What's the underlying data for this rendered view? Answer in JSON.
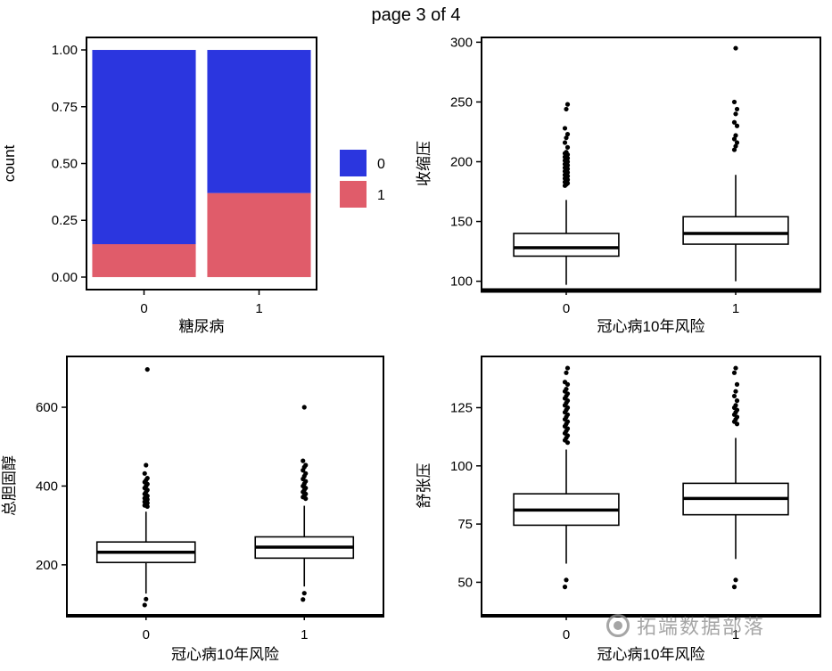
{
  "page": {
    "title": "page 3 of 4"
  },
  "watermark": {
    "text": "拓端数据部落",
    "icon": "tecdat-logo"
  },
  "colors": {
    "blue": "#2b36df",
    "red": "#e05c6a",
    "foreground": "#000000",
    "background": "#ffffff"
  },
  "chart_data": [
    {
      "id": "count-by-diabetes",
      "type": "bar",
      "stacked": true,
      "title": "",
      "xlabel": "糖尿病",
      "ylabel": "count",
      "categories": [
        "0",
        "1"
      ],
      "series": [
        {
          "name": "1",
          "color": "#e05c6a",
          "values": [
            0.145,
            0.37
          ]
        },
        {
          "name": "0",
          "color": "#2b36df",
          "values": [
            0.855,
            0.63
          ]
        }
      ],
      "legend": {
        "position": "right",
        "entries": [
          {
            "label": "0",
            "color": "#2b36df"
          },
          {
            "label": "1",
            "color": "#e05c6a"
          }
        ]
      },
      "ylim": [
        -0.055,
        1.055
      ],
      "yticks": [
        {
          "v": 0,
          "label": "0.00"
        },
        {
          "v": 0.25,
          "label": "0.25"
        },
        {
          "v": 0.5,
          "label": "0.50"
        },
        {
          "v": 0.75,
          "label": "0.75"
        },
        {
          "v": 1,
          "label": "1.00"
        }
      ],
      "grid": false
    },
    {
      "id": "systolic-bp-by-chd-risk",
      "type": "boxplot",
      "title": "",
      "xlabel": "冠心病10年风险",
      "ylabel": "收缩压",
      "categories": [
        "0",
        "1"
      ],
      "ylim": [
        93,
        304
      ],
      "yticks": [
        {
          "v": 100,
          "label": "100"
        },
        {
          "v": 150,
          "label": "150"
        },
        {
          "v": 200,
          "label": "200"
        },
        {
          "v": 250,
          "label": "250"
        },
        {
          "v": 300,
          "label": "300"
        }
      ],
      "boxes": [
        {
          "category": "0",
          "whisker_low": 97,
          "q1": 121,
          "median": 128,
          "q3": 140,
          "whisker_high": 168,
          "outliers": [
            180,
            181,
            182,
            183,
            184,
            185,
            186,
            187,
            188,
            189,
            190,
            191,
            192,
            193,
            194,
            195,
            196,
            197,
            198,
            199,
            200,
            201,
            202,
            203,
            204,
            205,
            206,
            207,
            208,
            212,
            216,
            220,
            223,
            228,
            244,
            248
          ]
        },
        {
          "category": "1",
          "whisker_low": 100,
          "q1": 131,
          "median": 140,
          "q3": 154,
          "whisker_high": 189,
          "outliers": [
            210,
            213,
            216,
            219,
            222,
            230,
            233,
            240,
            244,
            250,
            295
          ]
        }
      ],
      "grid": false
    },
    {
      "id": "total-cholesterol-by-chd-risk",
      "type": "boxplot",
      "title": "",
      "xlabel": "冠心病10年风险",
      "ylabel": "总胆固醇",
      "categories": [
        "0",
        "1"
      ],
      "ylim": [
        73,
        729
      ],
      "yticks": [
        {
          "v": 200,
          "label": "200"
        },
        {
          "v": 400,
          "label": "400"
        },
        {
          "v": 600,
          "label": "600"
        }
      ],
      "boxes": [
        {
          "category": "0",
          "whisker_low": 127,
          "q1": 206,
          "median": 232,
          "q3": 258,
          "whisker_high": 335,
          "outliers": [
            98,
            113,
            348,
            351,
            354,
            357,
            360,
            363,
            366,
            369,
            372,
            375,
            380,
            385,
            390,
            395,
            400,
            405,
            410,
            415,
            420,
            432,
            453,
            696
          ]
        },
        {
          "category": "1",
          "whisker_low": 145,
          "q1": 217,
          "median": 245,
          "q3": 271,
          "whisker_high": 350,
          "outliers": [
            112,
            128,
            368,
            372,
            376,
            380,
            385,
            390,
            395,
            400,
            406,
            412,
            418,
            425,
            432,
            440,
            448,
            453,
            464,
            600
          ]
        }
      ],
      "grid": false
    },
    {
      "id": "diastolic-bp-by-chd-risk",
      "type": "boxplot",
      "title": "",
      "xlabel": "冠心病10年风险",
      "ylabel": "舒张压",
      "categories": [
        "0",
        "1"
      ],
      "ylim": [
        36,
        147
      ],
      "yticks": [
        {
          "v": 50,
          "label": "50"
        },
        {
          "v": 75,
          "label": "75"
        },
        {
          "v": 100,
          "label": "100"
        },
        {
          "v": 125,
          "label": "125"
        }
      ],
      "boxes": [
        {
          "category": "0",
          "whisker_low": 58,
          "q1": 74.5,
          "median": 81,
          "q3": 88,
          "whisker_high": 107,
          "outliers": [
            48,
            51,
            110,
            111,
            112,
            113,
            114,
            115,
            116,
            117,
            118,
            119,
            120,
            121,
            122,
            123,
            124,
            125,
            126,
            127,
            128,
            129,
            130,
            131,
            132,
            133,
            135,
            136,
            140,
            142
          ]
        },
        {
          "category": "1",
          "whisker_low": 60,
          "q1": 79,
          "median": 86,
          "q3": 92.5,
          "whisker_high": 112,
          "outliers": [
            48,
            51,
            118,
            119,
            120,
            121,
            122,
            123,
            124,
            125,
            126,
            128,
            130,
            132,
            135,
            140,
            142
          ]
        }
      ],
      "grid": false
    }
  ]
}
